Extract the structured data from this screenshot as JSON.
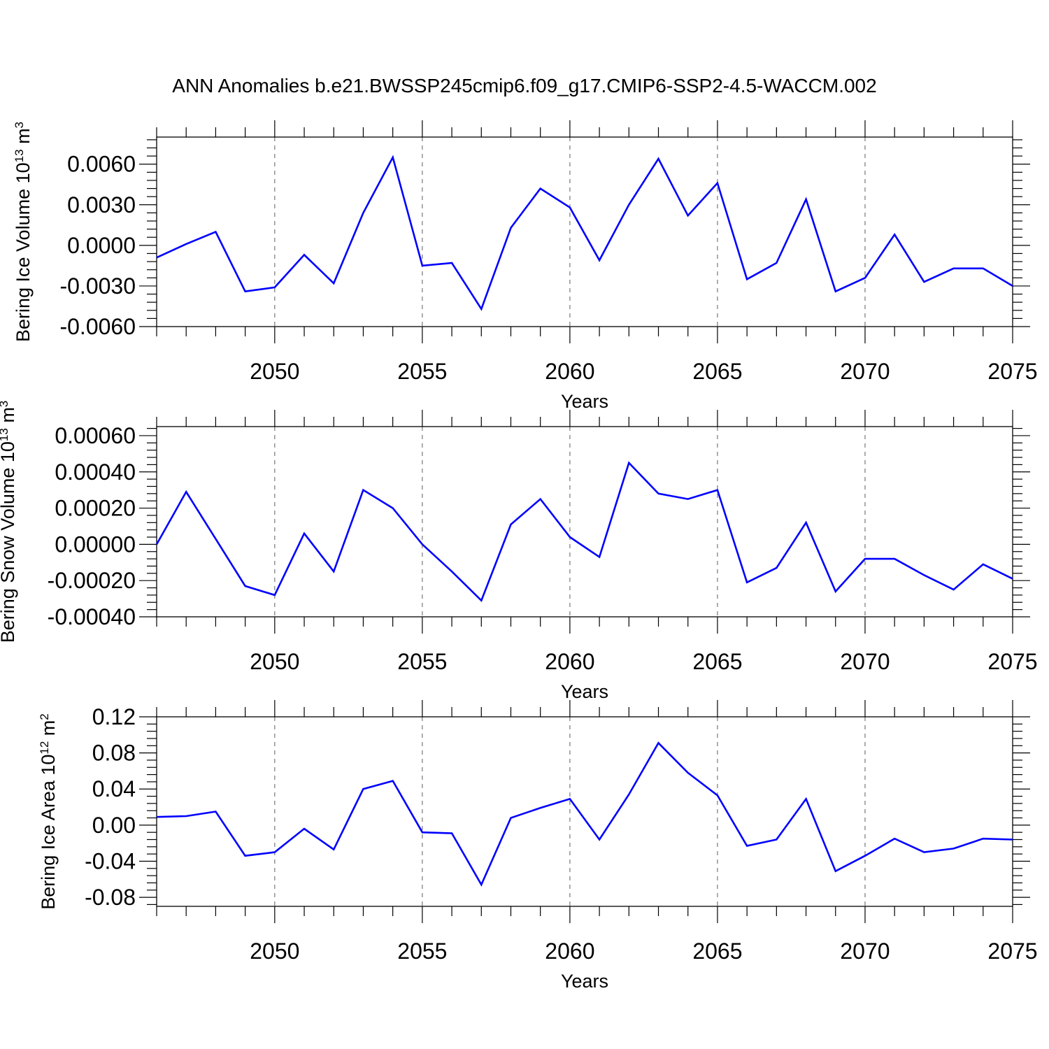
{
  "title": "ANN Anomalies b.e21.BWSSP245cmip6.f09_g17.CMIP6-SSP2-4.5-WACCM.002",
  "colors": {
    "series": "#0000ff",
    "grid": "#777777",
    "axis": "#000000"
  },
  "chart_data": [
    {
      "type": "line",
      "xlabel": "Years",
      "ylabel_text": "Bering Ice Volume 10",
      "ylabel_exp": "13",
      "ylabel_unit": " m",
      "ylabel_unit_exp": "3",
      "xlim": [
        2046,
        2075
      ],
      "ylim": [
        -0.006,
        0.008
      ],
      "x_ticks": [
        2050,
        2055,
        2060,
        2065,
        2070,
        2075
      ],
      "x_tick_labels": [
        "2050",
        "2055",
        "2060",
        "2065",
        "2070",
        "2075"
      ],
      "y_ticks": [
        -0.006,
        -0.003,
        0.0,
        0.003,
        0.006
      ],
      "y_tick_labels": [
        "-0.0060",
        "-0.0030",
        "0.0000",
        "0.0030",
        "0.0060"
      ],
      "grid": "x-dashed",
      "x": [
        2046,
        2047,
        2048,
        2049,
        2050,
        2051,
        2052,
        2053,
        2054,
        2055,
        2056,
        2057,
        2058,
        2059,
        2060,
        2061,
        2062,
        2063,
        2064,
        2065,
        2066,
        2067,
        2068,
        2069,
        2070,
        2071,
        2072,
        2073,
        2074,
        2075
      ],
      "values": [
        -0.0009,
        0.0001,
        0.001,
        -0.0034,
        -0.0031,
        -0.0007,
        -0.0028,
        0.0024,
        0.0065,
        -0.0015,
        -0.0013,
        -0.0047,
        0.0013,
        0.0042,
        0.0028,
        -0.0011,
        0.003,
        0.0064,
        0.0022,
        0.0046,
        -0.0025,
        -0.0013,
        0.0034,
        -0.0034,
        -0.0024,
        0.0008,
        -0.0027,
        -0.0017,
        -0.0017,
        -0.003
      ]
    },
    {
      "type": "line",
      "xlabel": "Years",
      "ylabel_text": "Bering Snow Volume 10",
      "ylabel_exp": "13",
      "ylabel_unit": " m",
      "ylabel_unit_exp": "3",
      "xlim": [
        2046,
        2075
      ],
      "ylim": [
        -0.0004,
        0.00065
      ],
      "x_ticks": [
        2050,
        2055,
        2060,
        2065,
        2070,
        2075
      ],
      "x_tick_labels": [
        "2050",
        "2055",
        "2060",
        "2065",
        "2070",
        "2075"
      ],
      "y_ticks": [
        -0.0004,
        -0.0002,
        0.0,
        0.0002,
        0.0004,
        0.0006
      ],
      "y_tick_labels": [
        "-0.00040",
        "-0.00020",
        "0.00000",
        "0.00020",
        "0.00040",
        "0.00060"
      ],
      "grid": "x-dashed",
      "x": [
        2046,
        2047,
        2048,
        2049,
        2050,
        2051,
        2052,
        2053,
        2054,
        2055,
        2056,
        2057,
        2058,
        2059,
        2060,
        2061,
        2062,
        2063,
        2064,
        2065,
        2066,
        2067,
        2068,
        2069,
        2070,
        2071,
        2072,
        2073,
        2074,
        2075
      ],
      "values": [
        0.0,
        0.00029,
        3e-05,
        -0.00023,
        -0.00028,
        6e-05,
        -0.00015,
        0.0003,
        0.0002,
        0.0,
        -0.00015,
        -0.00031,
        0.00011,
        0.00025,
        4e-05,
        -7e-05,
        0.00045,
        0.00028,
        0.00025,
        0.0003,
        -0.00021,
        -0.00013,
        0.00012,
        -0.00026,
        -8e-05,
        -8e-05,
        -0.00017,
        -0.00025,
        -0.00011,
        -0.00019
      ]
    },
    {
      "type": "line",
      "xlabel": "Years",
      "ylabel_text": "Bering Ice Area 10",
      "ylabel_exp": "12",
      "ylabel_unit": " m",
      "ylabel_unit_exp": "2",
      "xlim": [
        2046,
        2075
      ],
      "ylim": [
        -0.09,
        0.12
      ],
      "x_ticks": [
        2050,
        2055,
        2060,
        2065,
        2070,
        2075
      ],
      "x_tick_labels": [
        "2050",
        "2055",
        "2060",
        "2065",
        "2070",
        "2075"
      ],
      "y_ticks": [
        -0.08,
        -0.04,
        0.0,
        0.04,
        0.08,
        0.12
      ],
      "y_tick_labels": [
        "-0.08",
        "-0.04",
        "0.00",
        "0.04",
        "0.08",
        "0.12"
      ],
      "grid": "x-dashed",
      "x": [
        2046,
        2047,
        2048,
        2049,
        2050,
        2051,
        2052,
        2053,
        2054,
        2055,
        2056,
        2057,
        2058,
        2059,
        2060,
        2061,
        2062,
        2063,
        2064,
        2065,
        2066,
        2067,
        2068,
        2069,
        2070,
        2071,
        2072,
        2073,
        2074,
        2075
      ],
      "values": [
        0.009,
        0.01,
        0.015,
        -0.034,
        -0.03,
        -0.004,
        -0.027,
        0.04,
        0.049,
        -0.008,
        -0.009,
        -0.066,
        0.008,
        0.019,
        0.029,
        -0.016,
        0.034,
        0.091,
        0.058,
        0.033,
        -0.023,
        -0.016,
        0.029,
        -0.051,
        -0.034,
        -0.015,
        -0.03,
        -0.026,
        -0.015,
        -0.016
      ]
    }
  ]
}
